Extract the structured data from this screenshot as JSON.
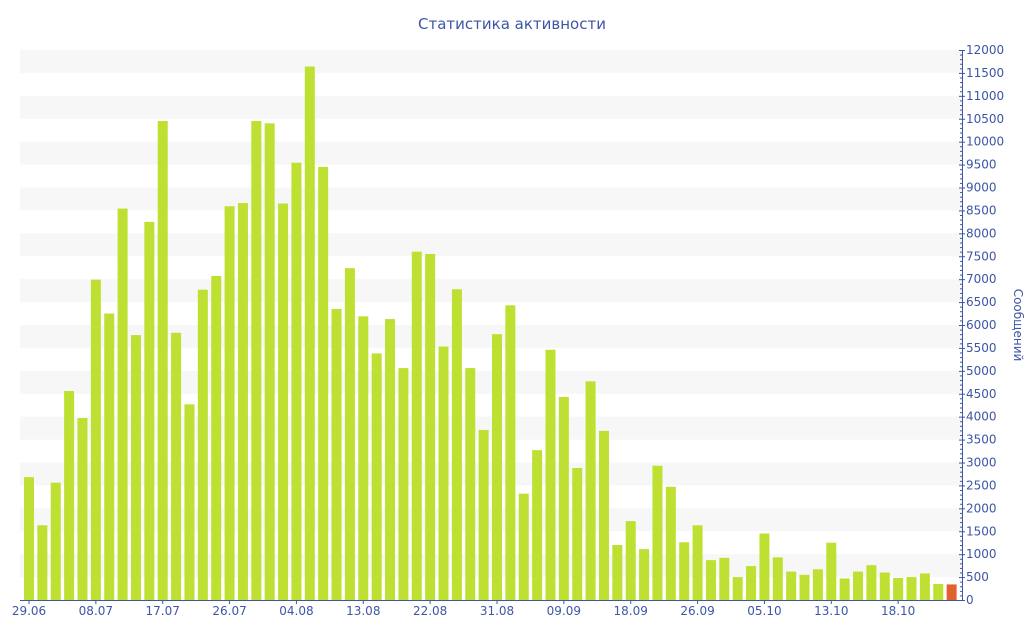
{
  "chart_data": {
    "type": "bar",
    "title": "Статистика активности",
    "ylabel": "Сообщений",
    "xlabel": "",
    "ylim": [
      0,
      12000
    ],
    "y_ticks": [
      0,
      500,
      1000,
      1500,
      2000,
      2500,
      3000,
      3500,
      4000,
      4500,
      5000,
      5500,
      6000,
      6500,
      7000,
      7500,
      8000,
      8500,
      9000,
      9500,
      10000,
      10500,
      11000,
      11500,
      12000
    ],
    "y_axis_position": "right",
    "grid": "alternating horizontal bands",
    "x_tick_labels": [
      "29.06",
      "08.07",
      "17.07",
      "26.07",
      "04.08",
      "13.08",
      "22.08",
      "31.08",
      "09.09",
      "18.09",
      "26.09",
      "05.10",
      "13.10",
      "18.10"
    ],
    "x_tick_every_n_bars": 5,
    "values": [
      2680,
      1630,
      2560,
      4560,
      3970,
      6990,
      6250,
      8540,
      5780,
      8250,
      10450,
      5830,
      4270,
      6770,
      7070,
      8590,
      8660,
      10450,
      10400,
      8650,
      9540,
      11640,
      9450,
      6350,
      7240,
      6190,
      5380,
      6130,
      5060,
      7600,
      7550,
      5530,
      6780,
      5060,
      3710,
      5800,
      6430,
      2320,
      3270,
      5460,
      4430,
      2880,
      4770,
      3690,
      1200,
      1720,
      1110,
      2930,
      2470,
      1260,
      1630,
      870,
      920,
      500,
      740,
      1450,
      930,
      620,
      550,
      670,
      1250,
      470,
      620,
      760,
      600,
      480,
      500,
      580,
      350,
      340
    ],
    "highlight_last": true,
    "colors": {
      "bar": "#bde032",
      "highlight": "#e0622e",
      "axis": "#3d56a6",
      "band": "#f7f7f7"
    }
  }
}
